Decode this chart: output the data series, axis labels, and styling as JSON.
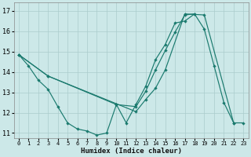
{
  "xlabel": "Humidex (Indice chaleur)",
  "bg_color": "#cce8e8",
  "line_color": "#1a7a6e",
  "grid_color": "#aacccc",
  "xlim": [
    -0.5,
    23.5
  ],
  "ylim": [
    10.75,
    17.4
  ],
  "yticks": [
    11,
    12,
    13,
    14,
    15,
    16,
    17
  ],
  "xticks": [
    0,
    1,
    2,
    3,
    4,
    5,
    6,
    7,
    8,
    9,
    10,
    11,
    12,
    13,
    14,
    15,
    16,
    17,
    18,
    19,
    20,
    21,
    22,
    23
  ],
  "line1_x": [
    0,
    1,
    2,
    3,
    4,
    5,
    6,
    7,
    8,
    9,
    10
  ],
  "line1_y": [
    14.85,
    14.3,
    13.6,
    13.15,
    12.3,
    11.5,
    11.2,
    11.1,
    10.9,
    11.0,
    12.4
  ],
  "line2_x": [
    10,
    11,
    12,
    13,
    14,
    15,
    16,
    17,
    18,
    19,
    20,
    21,
    22,
    23
  ],
  "line2_y": [
    12.4,
    11.5,
    12.4,
    13.3,
    14.6,
    15.35,
    16.4,
    16.5,
    16.85,
    16.1,
    14.3,
    12.5,
    11.5,
    11.5
  ],
  "line3_x": [
    0,
    3,
    10,
    12,
    13,
    14,
    15,
    16,
    17,
    18
  ],
  "line3_y": [
    14.85,
    13.8,
    12.4,
    12.3,
    13.05,
    14.1,
    15.05,
    15.95,
    16.8,
    16.85
  ],
  "line4_x": [
    0,
    3,
    12,
    13,
    14,
    15,
    17,
    19,
    22
  ],
  "line4_y": [
    14.85,
    13.8,
    12.05,
    12.65,
    13.2,
    14.1,
    16.85,
    16.8,
    11.5
  ]
}
